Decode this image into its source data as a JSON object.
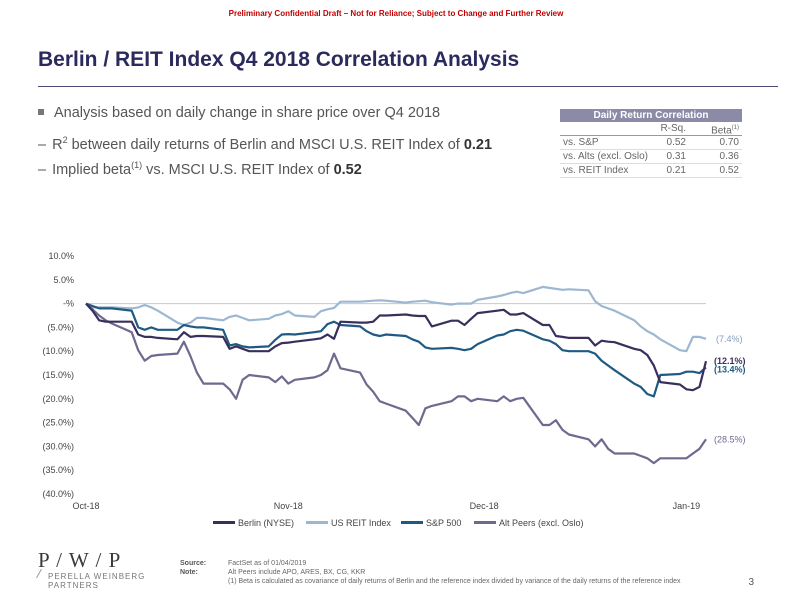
{
  "header": {
    "confidential": "Preliminary Confidential Draft – Not for Reliance; Subject to Change and Further Review",
    "title": "Berlin / REIT Index Q4 2018 Correlation Analysis"
  },
  "bullets": {
    "main": "Analysis based on daily change in share price over Q4 2018",
    "sub1_pre": "R",
    "sub1_sup": "2",
    "sub1_mid": " between daily returns of Berlin and MSCI U.S. REIT Index of ",
    "sub1_val": "0.21",
    "sub2_pre": "Implied beta",
    "sub2_sup": "(1)",
    "sub2_mid": " vs. MSCI U.S. REIT Index of ",
    "sub2_val": "0.52"
  },
  "table": {
    "title": "Daily Return Correlation",
    "col1": "R-Sq.",
    "col2": "Beta",
    "col2_sup": "(1)",
    "rows": [
      {
        "label": "vs. S&P",
        "rsq": "0.52",
        "beta": "0.70"
      },
      {
        "label": "vs. Alts (excl. Oslo)",
        "rsq": "0.31",
        "beta": "0.36"
      },
      {
        "label": "vs. REIT Index",
        "rsq": "0.21",
        "beta": "0.52"
      }
    ]
  },
  "chart_data": {
    "type": "line",
    "title": "",
    "ylim": [
      -40,
      10
    ],
    "yticks": [
      10,
      5,
      0,
      -5,
      -10,
      -15,
      -20,
      -25,
      -30,
      -35,
      -40
    ],
    "ytick_labels": [
      "10.0%",
      "5.0%",
      "-%",
      "(5.0%)",
      "(10.0%)",
      "(15.0%)",
      "(20.0%)",
      "(25.0%)",
      "(30.0%)",
      "(35.0%)",
      "(40.0%)"
    ],
    "xlabels": [
      "Oct-18",
      "Nov-18",
      "Dec-18",
      "Jan-19"
    ],
    "xlabel_days": [
      0,
      31,
      61,
      92
    ],
    "x_days": [
      0,
      1,
      2,
      3,
      4,
      7,
      8,
      9,
      10,
      11,
      14,
      15,
      16,
      17,
      18,
      21,
      22,
      23,
      24,
      25,
      28,
      29,
      30,
      31,
      32,
      35,
      36,
      37,
      38,
      39,
      42,
      43,
      44,
      45,
      46,
      49,
      50,
      51,
      52,
      53,
      56,
      57,
      58,
      59,
      60,
      63,
      64,
      65,
      66,
      67,
      70,
      71,
      72,
      73,
      74,
      77,
      78,
      79,
      80,
      81,
      84,
      85,
      86,
      87,
      88,
      91,
      92,
      93,
      94,
      95
    ],
    "series": [
      {
        "name": "Berlin (NYSE)",
        "color": "#3a2f5c",
        "values": [
          0,
          -1.5,
          -3.5,
          -3.8,
          -3.8,
          -3.8,
          -6.5,
          -7,
          -7,
          -7.2,
          -7.5,
          -6,
          -7,
          -6.8,
          -6.8,
          -7,
          -9.5,
          -9,
          -9.5,
          -10,
          -10,
          -9,
          -8.3,
          -8.2,
          -8,
          -7.5,
          -7.3,
          -6.5,
          -7.4,
          -3.8,
          -4,
          -4,
          -3.8,
          -2.5,
          -2.5,
          -2.3,
          -2.5,
          -2.6,
          -2.6,
          -4.8,
          -3.6,
          -3.6,
          -4.5,
          -3.2,
          -2,
          -1.5,
          -1.3,
          -2.3,
          -2.3,
          -2,
          -4.5,
          -4.5,
          -6.8,
          -7,
          -7.2,
          -7.2,
          -8.8,
          -7.8,
          -8,
          -8.1,
          -9.5,
          -9.8,
          -10.8,
          -13,
          -16.5,
          -17,
          -18,
          -18.2,
          -17.5,
          -12.1
        ]
      },
      {
        "name": "US REIT Index",
        "color": "#9db7d2",
        "values": [
          0,
          -0.8,
          -0.8,
          -0.8,
          -0.8,
          -1,
          -0.8,
          -0.3,
          -0.8,
          -1.5,
          -4,
          -4.5,
          -4,
          -3,
          -3,
          -3.5,
          -2.8,
          -2.5,
          -3,
          -3.5,
          -3.2,
          -2.5,
          -2.2,
          -1.6,
          -2.5,
          -2.8,
          -1.6,
          -1.2,
          -0.9,
          0.4,
          0.4,
          0.5,
          0.6,
          0.7,
          0.6,
          0.2,
          0.4,
          0.5,
          0.6,
          0.3,
          -0.2,
          0,
          0,
          0,
          0.8,
          1.5,
          1.8,
          2.2,
          2.5,
          2.2,
          3.5,
          3.3,
          3.1,
          2.9,
          3,
          2.8,
          0.5,
          -0.5,
          -1,
          -1.5,
          -3.5,
          -4.8,
          -5.8,
          -6.5,
          -7.5,
          -9.8,
          -10,
          -7,
          -7,
          -7.4
        ]
      },
      {
        "name": "S&P 500",
        "color": "#1f5a82",
        "values": [
          0,
          -0.5,
          -1,
          -1,
          -1,
          -1.5,
          -5,
          -5.5,
          -5,
          -5.5,
          -5.5,
          -4.5,
          -4.8,
          -5,
          -5,
          -5.5,
          -8.8,
          -8.5,
          -9,
          -9.2,
          -9,
          -7.6,
          -6.5,
          -6.4,
          -6.5,
          -6,
          -5.8,
          -4.3,
          -3.8,
          -4.5,
          -4.8,
          -5.8,
          -6.5,
          -6.8,
          -6.5,
          -6.8,
          -7.5,
          -8,
          -9.2,
          -9.5,
          -9.3,
          -9.5,
          -9.8,
          -9.5,
          -8.5,
          -6.7,
          -6.5,
          -5.8,
          -5.5,
          -5.7,
          -7.5,
          -7.8,
          -8.5,
          -9.8,
          -10,
          -10,
          -10.5,
          -12,
          -13,
          -14,
          -16.8,
          -17.5,
          -19,
          -19.5,
          -15,
          -14.8,
          -14.3,
          -14.3,
          -14.6,
          -13.4
        ]
      },
      {
        "name": "Alt Peers (excl. Oslo)",
        "color": "#6e6a8e",
        "values": [
          0,
          -1.2,
          -2.5,
          -3.5,
          -4.2,
          -6,
          -9.8,
          -12,
          -11,
          -10.8,
          -10.5,
          -8,
          -11,
          -14.5,
          -16.8,
          -16.8,
          -18,
          -20,
          -16,
          -15,
          -15.5,
          -16.5,
          -15.3,
          -16.8,
          -16,
          -15.5,
          -15,
          -14,
          -10.5,
          -13.6,
          -14.5,
          -17,
          -18.5,
          -20.5,
          -21,
          -22.5,
          -24,
          -25.5,
          -22,
          -21.5,
          -20.5,
          -19.5,
          -19.5,
          -20.5,
          -20,
          -20.5,
          -19.5,
          -20.5,
          -20,
          -19.8,
          -25.5,
          -25.5,
          -24.5,
          -26.5,
          -27.5,
          -28.5,
          -30,
          -28.5,
          -30.5,
          -31.5,
          -31.5,
          -32,
          -32.5,
          -33.5,
          -32.5,
          -32.5,
          -32.5,
          -31.5,
          -30.5,
          -28.5
        ]
      }
    ],
    "end_labels": [
      {
        "series": "US REIT Index",
        "text": "(7.4%)",
        "value": -7.4,
        "color": "#7f9fbf"
      },
      {
        "series": "Berlin (NYSE)",
        "text": "(12.1%)",
        "value": -12.1,
        "color": "#3a2f5c"
      },
      {
        "series": "S&P 500",
        "text": "(13.4%)",
        "value": -13.4,
        "color": "#1f5a82"
      },
      {
        "series": "Alt Peers (excl. Oslo)",
        "text": "(28.5%)",
        "value": -28.5,
        "color": "#6e6a8e"
      }
    ]
  },
  "legend": {
    "items": [
      {
        "label": "Berlin (NYSE)",
        "color": "#3a2f5c"
      },
      {
        "label": "US REIT Index",
        "color": "#9db7d2"
      },
      {
        "label": "S&P 500",
        "color": "#1f5a82"
      },
      {
        "label": "Alt Peers (excl. Oslo)",
        "color": "#6e6a8e"
      }
    ]
  },
  "footer": {
    "logo_mark": "P / W / P",
    "logo_name1": "PERELLA WEINBERG",
    "logo_name2": "PARTNERS",
    "source_label": "Source:",
    "source_text": "FactSet as of 01/04/2019",
    "note_label": "Note:",
    "note_text": "Alt Peers include APO, ARES, BX, CG, KKR",
    "footnote": "(1)  Beta is calculated as covariance of daily returns of Berlin and the reference index divided by variance of the daily returns of the reference index",
    "page": "3"
  }
}
